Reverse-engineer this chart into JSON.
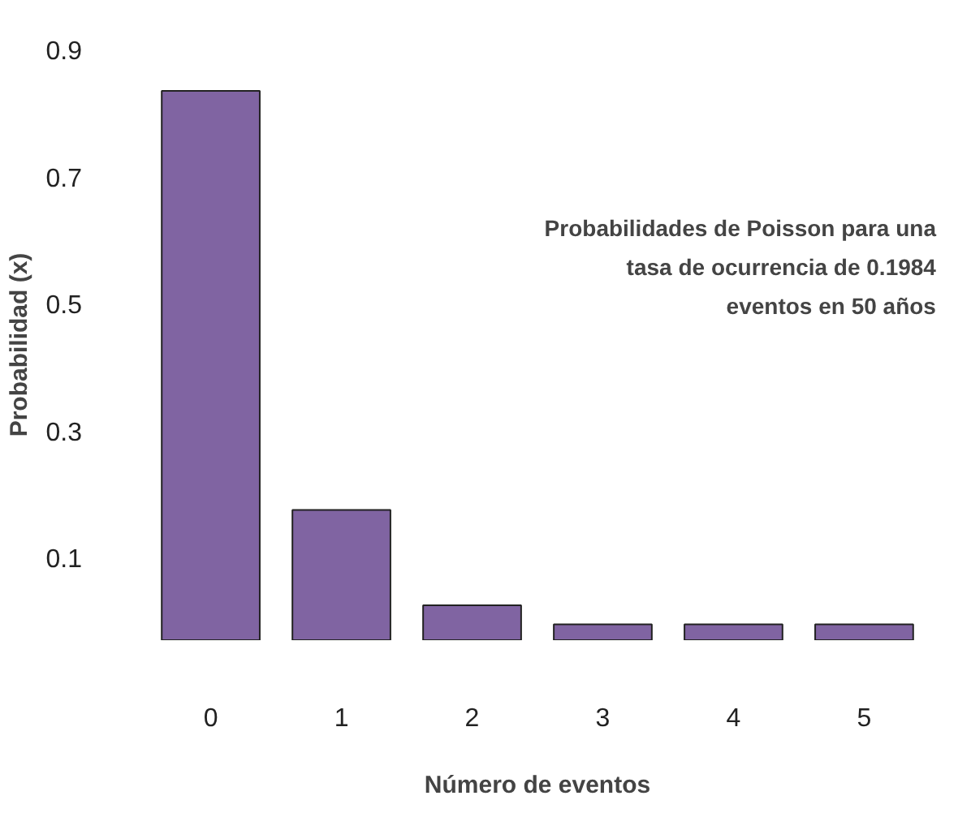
{
  "chart_data": {
    "type": "bar",
    "xlabel": "Número de eventos",
    "ylabel": "Probabilidad (x)",
    "categories": [
      "0",
      "1",
      "2",
      "3",
      "4",
      "5"
    ],
    "values": [
      0.865,
      0.205,
      0.055,
      0.025,
      0.025,
      0.025
    ],
    "base": [
      -0.03,
      -0.03,
      -0.03,
      -0.03,
      -0.03,
      -0.03
    ],
    "color": "#8064a2",
    "ylim": [
      -0.03,
      0.9
    ],
    "yticks": [
      0.1,
      0.3,
      0.5,
      0.7,
      0.9
    ],
    "grid": false,
    "annotations": [
      "Probabilidades de Poisson para una\ntasa de ocurrencia de 0.1984\neventos en 50 años"
    ]
  }
}
